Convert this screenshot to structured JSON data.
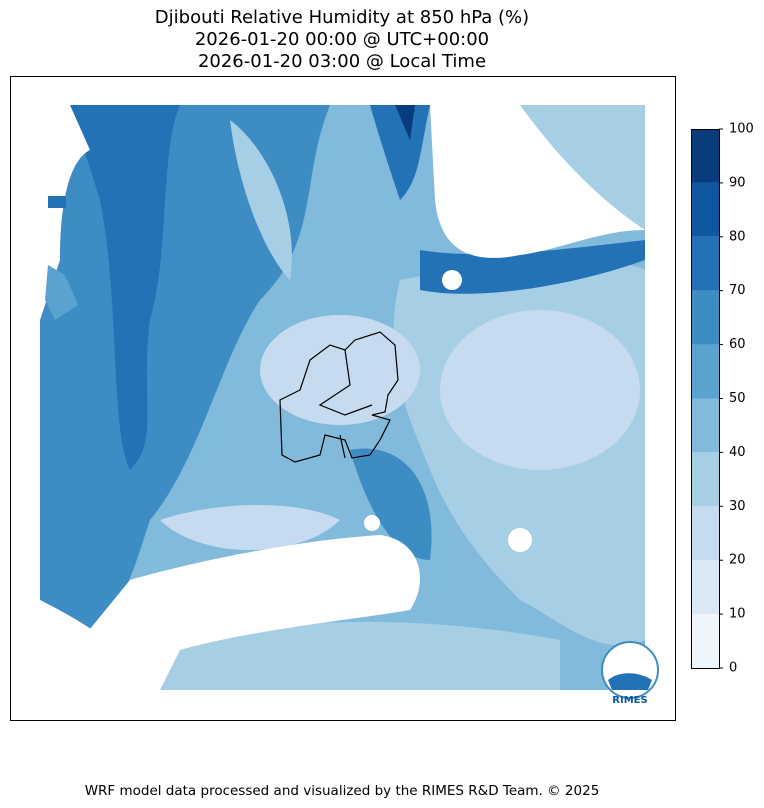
{
  "title": [
    "Djibouti Relative Humidity at 850 hPa (%)",
    "2026-01-20 00:00 @ UTC+00:00",
    "2026-01-20 03:00 @ Local Time"
  ],
  "colorbar": {
    "ticks": [
      0,
      10,
      20,
      30,
      40,
      50,
      60,
      70,
      80,
      90,
      100
    ],
    "colors": [
      "#eef5fc",
      "#dbe9f6",
      "#c6dbef",
      "#a6cee4",
      "#82badb",
      "#5aa2cf",
      "#3d8dc4",
      "#2272b5",
      "#0d58a1",
      "#083c7d"
    ]
  },
  "logo_text": "RIMES",
  "footer": "WRF model data processed and visualized by the RIMES R&D Team. © 2025"
}
